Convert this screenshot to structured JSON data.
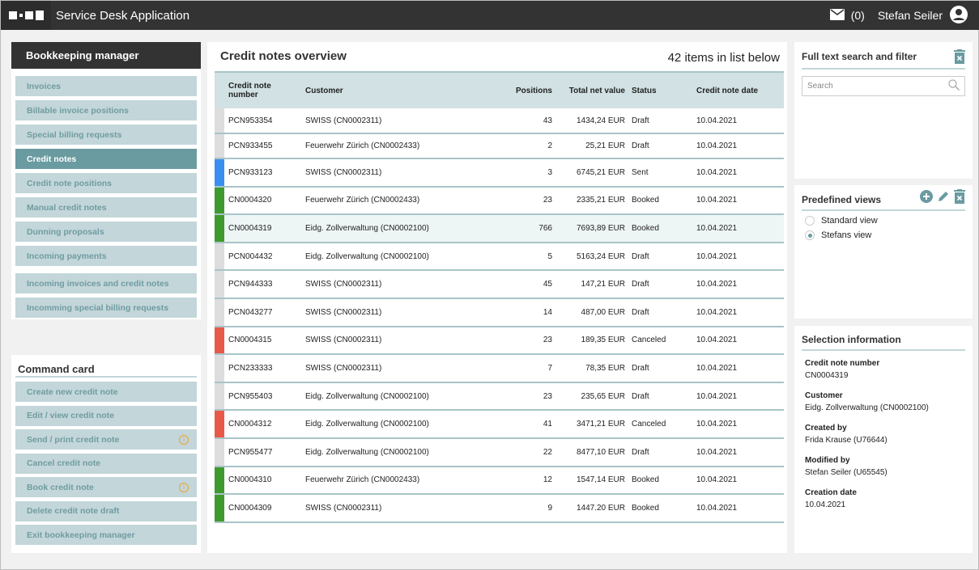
{
  "header": {
    "app_title": "Service Desk Application",
    "mail_count": "(0)",
    "user_name": "Stefan Seiler"
  },
  "nav": {
    "title": "Bookkeeping manager",
    "items": [
      {
        "label": "Invoices",
        "active": false
      },
      {
        "label": "Billable invoice positions",
        "active": false
      },
      {
        "label": "Special billing requests",
        "active": false
      },
      {
        "label": "Credit notes",
        "active": true
      },
      {
        "label": "Credit note positions",
        "active": false
      },
      {
        "label": "Manual credit notes",
        "active": false
      },
      {
        "label": "Dunning proposals",
        "active": false
      },
      {
        "label": "Incoming payments",
        "active": false
      },
      {
        "label": "Incoming invoices and credit notes",
        "active": false
      },
      {
        "label": "Incomming special billing requests",
        "active": false
      }
    ]
  },
  "command_card": {
    "title": "Command card",
    "items": [
      {
        "label": "Create new credit note",
        "info": false
      },
      {
        "label": "Edit / view credit note",
        "info": false
      },
      {
        "label": "Send / print credit note",
        "info": true
      },
      {
        "label": "Cancel credit note",
        "info": false
      },
      {
        "label": "Book credit note",
        "info": true
      },
      {
        "label": "Delete credit note draft",
        "info": false
      },
      {
        "label": "Exit bookkeeping manager",
        "info": false
      }
    ]
  },
  "main": {
    "title": "Credit notes overview",
    "count_text": "42 items in list below",
    "columns": [
      "Credit note number",
      "Customer",
      "Positions",
      "Total net value",
      "Status",
      "Credit note date"
    ],
    "status_colors": {
      "Draft": "#dddddd",
      "Sent": "#3a8ef0",
      "Booked": "#3e9a2e",
      "Canceled": "#e85a47"
    },
    "rows": [
      [
        "PCN953354",
        "SWISS (CN0002311)",
        "43",
        "1434,24 EUR",
        "Draft",
        "10.04.2021"
      ],
      [
        "PCN933455",
        "Feuerwehr Zürich (CN0002433)",
        "2",
        "25,21 EUR",
        "Draft",
        "10.04.2021"
      ],
      [
        "PCN933123",
        "SWISS (CN0002311)",
        "3",
        "6745,21 EUR",
        "Sent",
        "10.04.2021"
      ],
      [
        "CN0004320",
        "Feuerwehr Zürich (CN0002433)",
        "23",
        "2335,21 EUR",
        "Booked",
        "10.04.2021"
      ],
      [
        "CN0004319",
        "Eidg. Zollverwaltung (CN0002100)",
        "766",
        "7693,89 EUR",
        "Booked",
        "10.04.2021"
      ],
      [
        "PCN004432",
        "Eidg. Zollverwaltung (CN0002100)",
        "5",
        "5163,24 EUR",
        "Draft",
        "10.04.2021"
      ],
      [
        "PCN944333",
        "SWISS (CN0002311)",
        "45",
        "147,21 EUR",
        "Draft",
        "10.04.2021"
      ],
      [
        "PCN043277",
        "SWISS (CN0002311)",
        "14",
        "487,00 EUR",
        "Draft",
        "10.04.2021"
      ],
      [
        "CN0004315",
        "SWISS (CN0002311)",
        "23",
        "189,35 EUR",
        "Canceled",
        "10.04.2021"
      ],
      [
        "PCN233333",
        "SWISS (CN0002311)",
        "7",
        "78,35 EUR",
        "Draft",
        "10.04.2021"
      ],
      [
        "PCN955403",
        "Eidg. Zollverwaltung (CN0002100)",
        "23",
        "235,65 EUR",
        "Draft",
        "10.04.2021"
      ],
      [
        "CN0004312",
        "Eidg. Zollverwaltung (CN0002100)",
        "41",
        "3471,21 EUR",
        "Canceled",
        "10.04.2021"
      ],
      [
        "PCN955477",
        "Eidg. Zollverwaltung (CN0002100)",
        "22",
        "8477,10 EUR",
        "Draft",
        "10.04.2021"
      ],
      [
        "CN0004310",
        "Feuerwehr Zürich (CN0002433)",
        "12",
        "1547,14 EUR",
        "Booked",
        "10.04.2021"
      ],
      [
        "CN0004309",
        "SWISS (CN0002311)",
        "9",
        "1447.20 EUR",
        "Booked",
        "10.04.2021"
      ]
    ],
    "selected_row": 4
  },
  "search": {
    "title": "Full text search and filter",
    "placeholder": "Search"
  },
  "views": {
    "title": "Predefined views",
    "options": [
      {
        "label": "Standard view",
        "selected": false
      },
      {
        "label": "Stefans view",
        "selected": true
      }
    ]
  },
  "selection": {
    "title": "Selection information",
    "fields": [
      {
        "label": "Credit note number",
        "value": "CN0004319"
      },
      {
        "label": "Customer",
        "value": "Eidg. Zollverwaltung (CN0002100)"
      },
      {
        "label": "Created by",
        "value": "Frida Krause (U76644)"
      },
      {
        "label": "Modified by",
        "value": "Stefan Seiler (U65545)"
      },
      {
        "label": "Creation date",
        "value": "10.04.2021"
      }
    ]
  }
}
